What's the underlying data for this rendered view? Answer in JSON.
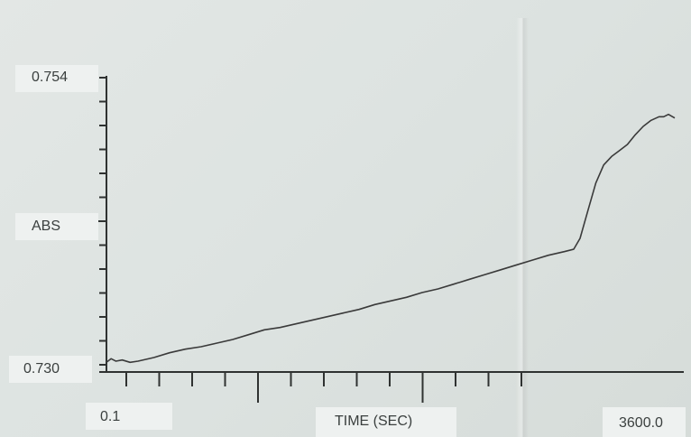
{
  "chart_data": {
    "type": "line",
    "title": "",
    "xlabel": "TIME (SEC)",
    "ylabel": "ABS",
    "xlim": [
      0.1,
      3600.0
    ],
    "ylim": [
      0.73,
      0.754
    ],
    "x_tick_labels": [
      "0.1",
      "3600.0"
    ],
    "y_tick_labels": [
      "0.754",
      "0.730"
    ],
    "grid": false,
    "legend": "none",
    "series": [
      {
        "color": "#3a3a3a",
        "x": [
          0.1,
          30,
          60,
          100,
          150,
          200,
          300,
          400,
          500,
          600,
          700,
          800,
          900,
          1000,
          1100,
          1200,
          1300,
          1400,
          1500,
          1600,
          1700,
          1800,
          1900,
          2000,
          2100,
          2200,
          2300,
          2400,
          2500,
          2600,
          2700,
          2800,
          2900,
          2960,
          3000,
          3050,
          3100,
          3150,
          3200,
          3250,
          3300,
          3350,
          3400,
          3450,
          3500,
          3530,
          3560,
          3600
        ],
        "values": [
          0.7302,
          0.7305,
          0.7303,
          0.7304,
          0.7302,
          0.7303,
          0.7306,
          0.731,
          0.7313,
          0.7315,
          0.7318,
          0.7321,
          0.7325,
          0.7329,
          0.7331,
          0.7334,
          0.7337,
          0.734,
          0.7343,
          0.7346,
          0.735,
          0.7353,
          0.7356,
          0.736,
          0.7363,
          0.7367,
          0.7371,
          0.7375,
          0.7379,
          0.7383,
          0.7387,
          0.7391,
          0.7394,
          0.7396,
          0.7405,
          0.7428,
          0.7451,
          0.7466,
          0.7473,
          0.7478,
          0.7483,
          0.7491,
          0.7498,
          0.7503,
          0.7506,
          0.7506,
          0.7508,
          0.7505
        ]
      }
    ]
  }
}
